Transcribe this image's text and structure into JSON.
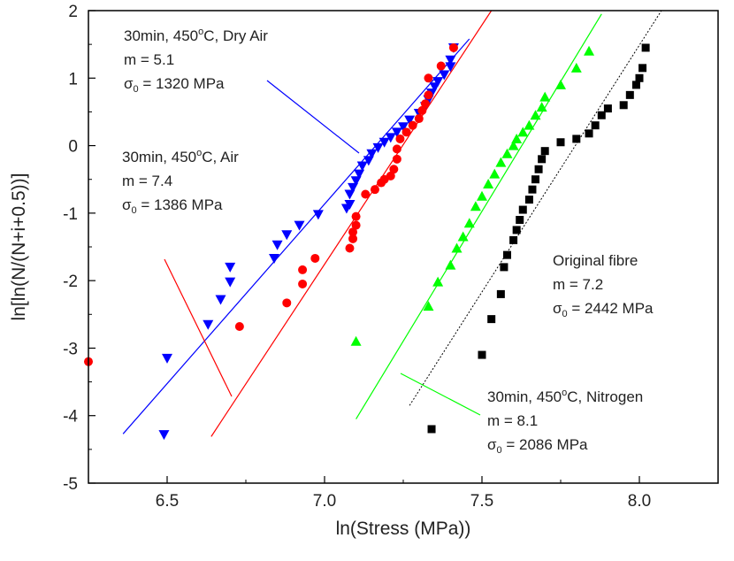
{
  "chart_data": {
    "type": "scatter",
    "xlabel": "ln(Stress (MPa))",
    "ylabel": "ln[ln(N/(N+i+0.5))]",
    "xlim": [
      6.25,
      8.25
    ],
    "ylim": [
      -5,
      2
    ],
    "xticks": [
      "6.5",
      "7.0",
      "7.5",
      "8.0"
    ],
    "yticks": [
      "-5",
      "-4",
      "-3",
      "-2",
      "-1",
      "0",
      "1",
      "2"
    ],
    "grid": false,
    "series": [
      {
        "key": "dry_air",
        "color": "#0000ff",
        "marker": "triangle-down",
        "points": [
          [
            6.49,
            -4.28
          ],
          [
            6.5,
            -3.15
          ],
          [
            6.63,
            -2.65
          ],
          [
            6.67,
            -2.28
          ],
          [
            6.7,
            -2.02
          ],
          [
            6.7,
            -1.8
          ],
          [
            6.84,
            -1.67
          ],
          [
            6.85,
            -1.47
          ],
          [
            6.88,
            -1.32
          ],
          [
            6.92,
            -1.18
          ],
          [
            6.98,
            -1.02
          ],
          [
            7.07,
            -0.93
          ],
          [
            7.08,
            -0.87
          ],
          [
            7.08,
            -0.72
          ],
          [
            7.09,
            -0.62
          ],
          [
            7.1,
            -0.52
          ],
          [
            7.11,
            -0.42
          ],
          [
            7.12,
            -0.3
          ],
          [
            7.14,
            -0.22
          ],
          [
            7.15,
            -0.12
          ],
          [
            7.17,
            -0.03
          ],
          [
            7.19,
            0.05
          ],
          [
            7.21,
            0.12
          ],
          [
            7.23,
            0.2
          ],
          [
            7.25,
            0.28
          ],
          [
            7.27,
            0.38
          ],
          [
            7.3,
            0.48
          ],
          [
            7.32,
            0.58
          ],
          [
            7.33,
            0.68
          ],
          [
            7.34,
            0.78
          ],
          [
            7.35,
            0.87
          ],
          [
            7.36,
            0.95
          ],
          [
            7.38,
            1.05
          ],
          [
            7.4,
            1.17
          ],
          [
            7.4,
            1.27
          ],
          [
            7.41,
            1.45
          ]
        ],
        "fit": [
          [
            6.36,
            -4.27
          ],
          [
            7.46,
            1.58
          ]
        ]
      },
      {
        "key": "air",
        "color": "#ff0000",
        "marker": "circle",
        "points": [
          [
            6.25,
            -3.2
          ],
          [
            6.73,
            -2.68
          ],
          [
            6.88,
            -2.33
          ],
          [
            6.93,
            -2.05
          ],
          [
            6.93,
            -1.84
          ],
          [
            6.97,
            -1.67
          ],
          [
            7.08,
            -1.52
          ],
          [
            7.09,
            -1.38
          ],
          [
            7.09,
            -1.28
          ],
          [
            7.1,
            -1.18
          ],
          [
            7.1,
            -1.05
          ],
          [
            7.13,
            -0.72
          ],
          [
            7.16,
            -0.65
          ],
          [
            7.18,
            -0.55
          ],
          [
            7.19,
            -0.5
          ],
          [
            7.21,
            -0.45
          ],
          [
            7.22,
            -0.35
          ],
          [
            7.23,
            -0.2
          ],
          [
            7.23,
            -0.05
          ],
          [
            7.24,
            0.1
          ],
          [
            7.26,
            0.2
          ],
          [
            7.28,
            0.3
          ],
          [
            7.3,
            0.4
          ],
          [
            7.31,
            0.52
          ],
          [
            7.32,
            0.62
          ],
          [
            7.33,
            0.75
          ],
          [
            7.33,
            1.0
          ],
          [
            7.37,
            1.18
          ],
          [
            7.41,
            1.45
          ]
        ],
        "fit": [
          [
            6.64,
            -4.31
          ],
          [
            7.53,
            2.0
          ]
        ]
      },
      {
        "key": "nitrogen",
        "color": "#00ff00",
        "marker": "triangle-up",
        "points": [
          [
            7.1,
            -2.9
          ],
          [
            7.33,
            -2.38
          ],
          [
            7.36,
            -2.02
          ],
          [
            7.4,
            -1.77
          ],
          [
            7.42,
            -1.52
          ],
          [
            7.44,
            -1.35
          ],
          [
            7.46,
            -1.15
          ],
          [
            7.48,
            -0.9
          ],
          [
            7.5,
            -0.75
          ],
          [
            7.52,
            -0.57
          ],
          [
            7.54,
            -0.42
          ],
          [
            7.56,
            -0.25
          ],
          [
            7.58,
            -0.12
          ],
          [
            7.6,
            0.0
          ],
          [
            7.61,
            0.1
          ],
          [
            7.63,
            0.2
          ],
          [
            7.65,
            0.3
          ],
          [
            7.67,
            0.45
          ],
          [
            7.69,
            0.57
          ],
          [
            7.7,
            0.72
          ],
          [
            7.75,
            0.9
          ],
          [
            7.8,
            1.15
          ],
          [
            7.84,
            1.4
          ]
        ],
        "fit": [
          [
            7.1,
            -4.05
          ],
          [
            7.88,
            1.95
          ]
        ]
      },
      {
        "key": "original",
        "color": "#000000",
        "marker": "square",
        "points": [
          [
            7.34,
            -4.2
          ],
          [
            7.5,
            -3.1
          ],
          [
            7.53,
            -2.57
          ],
          [
            7.56,
            -2.2
          ],
          [
            7.57,
            -1.8
          ],
          [
            7.58,
            -1.62
          ],
          [
            7.6,
            -1.4
          ],
          [
            7.61,
            -1.25
          ],
          [
            7.62,
            -1.1
          ],
          [
            7.63,
            -0.95
          ],
          [
            7.65,
            -0.8
          ],
          [
            7.66,
            -0.65
          ],
          [
            7.67,
            -0.5
          ],
          [
            7.68,
            -0.35
          ],
          [
            7.69,
            -0.2
          ],
          [
            7.7,
            -0.08
          ],
          [
            7.75,
            0.05
          ],
          [
            7.8,
            0.1
          ],
          [
            7.84,
            0.18
          ],
          [
            7.86,
            0.3
          ],
          [
            7.88,
            0.45
          ],
          [
            7.9,
            0.55
          ],
          [
            7.95,
            0.6
          ],
          [
            7.97,
            0.75
          ],
          [
            7.99,
            0.9
          ],
          [
            8.0,
            1.0
          ],
          [
            8.01,
            1.15
          ],
          [
            8.02,
            1.45
          ]
        ],
        "fit": [
          [
            7.27,
            -3.85
          ],
          [
            8.07,
            2.0
          ]
        ]
      }
    ],
    "annotations": [
      {
        "series": "dry_air",
        "lines": [
          "30min, 450°C, Dry Air",
          "m = 5.1",
          "σ0 = 1320 MPa"
        ]
      },
      {
        "series": "air",
        "lines": [
          "30min, 450°C, Air",
          "m = 7.4",
          "σ0 = 1386 MPa"
        ]
      },
      {
        "series": "original",
        "lines": [
          "Original fibre",
          "m = 7.2",
          "σ0 = 2442 MPa"
        ]
      },
      {
        "series": "nitrogen",
        "lines": [
          "30min, 450°C, Nitrogen",
          "m = 8.1",
          "σ0 = 2086 MPa"
        ]
      }
    ]
  }
}
